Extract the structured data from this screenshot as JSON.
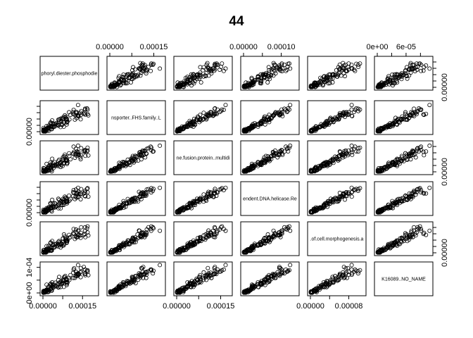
{
  "chart_data": {
    "type": "scatter",
    "subtype": "pairs-matrix",
    "title": "44",
    "variables": [
      "phoryl.diester.phosphodie",
      "nsporter..FHS.family..L",
      "ne.fusion.protein..multidi",
      "endent.DNA.helicase.Re",
      ".of.cell.morphogenesis.a",
      "K16089..NO_NAME"
    ],
    "points_per_panel": 110,
    "axes": [
      {
        "side": "bottom",
        "column": 0,
        "ticks": [
          0,
          0.00015
        ],
        "labels": [
          "0.00000",
          "0.00015"
        ]
      },
      {
        "side": "top",
        "column": 1,
        "ticks": [
          0,
          0.00015
        ],
        "labels": [
          "0.00000",
          "0.00015"
        ]
      },
      {
        "side": "bottom",
        "column": 2,
        "ticks": [
          0,
          0.00015
        ],
        "labels": [
          "0.00000",
          "0.00015"
        ]
      },
      {
        "side": "top",
        "column": 3,
        "ticks": [
          0,
          0.0001
        ],
        "labels": [
          "0.00000",
          "0.00010"
        ]
      },
      {
        "side": "bottom",
        "column": 4,
        "ticks": [
          0,
          8e-05
        ],
        "labels": [
          "0.00000",
          "0.00008"
        ]
      },
      {
        "side": "top",
        "column": 5,
        "ticks": [
          0,
          6e-05
        ],
        "labels": [
          "0e+00",
          "6e-05"
        ]
      },
      {
        "side": "left",
        "row": 1,
        "ticks": [
          0
        ],
        "labels": [
          "0.00000"
        ]
      },
      {
        "side": "right",
        "row": 0,
        "ticks": [
          0
        ],
        "labels": [
          "0.00000"
        ]
      },
      {
        "side": "right",
        "row": 2,
        "ticks": [
          0
        ],
        "labels": [
          "0.00000"
        ]
      },
      {
        "side": "left",
        "row": 3,
        "ticks": [
          0
        ],
        "labels": [
          "0.00000"
        ]
      },
      {
        "side": "right",
        "row": 4,
        "ticks": [
          0
        ],
        "labels": [
          "0.00000"
        ]
      },
      {
        "side": "left",
        "row": 5,
        "ticks": [
          0,
          0.0001
        ],
        "labels": [
          "0e+00",
          "1e-04"
        ]
      }
    ],
    "ranges": [
      [
        0,
        0.0002
      ],
      [
        0,
        0.00018
      ],
      [
        0,
        0.00018
      ],
      [
        0,
        0.00014
      ],
      [
        0,
        0.00011
      ],
      [
        0,
        0.00011
      ]
    ],
    "grid": false,
    "legend": "none"
  }
}
